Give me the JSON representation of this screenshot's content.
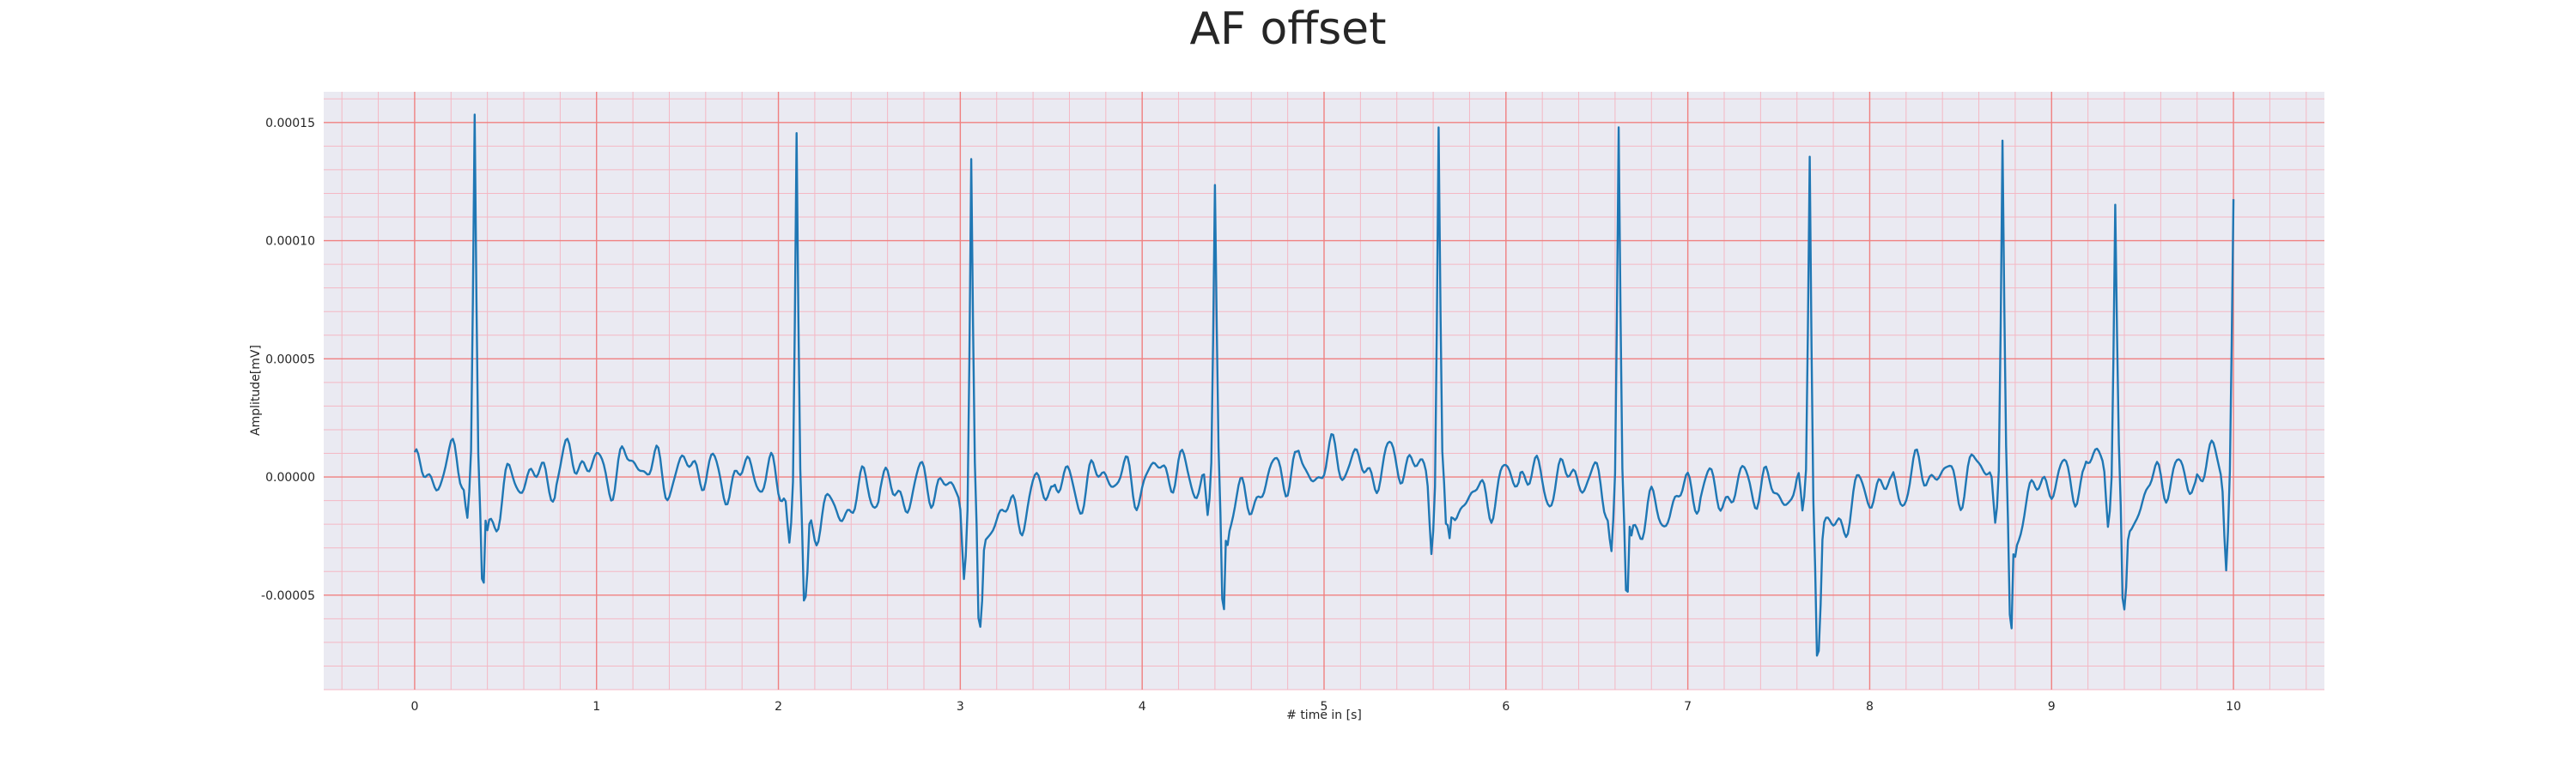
{
  "chart_data": {
    "type": "line",
    "title": "AF offset",
    "xlabel": "# time in [s]",
    "ylabel": "Amplitude[mV]",
    "xlim": [
      -0.5,
      10.5
    ],
    "ylim": [
      -9e-05,
      0.000163
    ],
    "xticks": [
      0,
      1,
      2,
      3,
      4,
      5,
      6,
      7,
      8,
      9,
      10
    ],
    "xtick_labels": [
      "0",
      "1",
      "2",
      "3",
      "4",
      "5",
      "6",
      "7",
      "8",
      "9",
      "10"
    ],
    "yticks": [
      -5e-05,
      0,
      5e-05,
      0.0001,
      0.00015
    ],
    "ytick_labels": [
      "-0.00005",
      "0.00000",
      "0.00005",
      "0.00010",
      "0.00015"
    ],
    "grid": true,
    "minor_grid": true,
    "colors": {
      "background": "#eaeaf2",
      "major_grid": "#f08080",
      "minor_grid": "#f4b8c4",
      "line": "#1f77b4"
    },
    "sampling": {
      "start_s": 0,
      "end_s": 10,
      "rate_hz": 100
    },
    "beats": [
      {
        "t": 0.33,
        "peak": 0.000146,
        "dip_before": -2.2e-05,
        "dip_after": -5.4e-05
      },
      {
        "t": 2.1,
        "peak": 0.000147,
        "dip_before": -2.1e-05,
        "dip_after": -6.3e-05
      },
      {
        "t": 3.06,
        "peak": 0.000142,
        "dip_before": -2.9e-05,
        "dip_after": -7.4e-05
      },
      {
        "t": 4.4,
        "peak": 0.000114,
        "dip_before": -2e-05,
        "dip_after": -6.3e-05
      },
      {
        "t": 5.63,
        "peak": 0.000152,
        "dip_before": -2.8e-05,
        "dip_after": -4e-05
      },
      {
        "t": 6.62,
        "peak": 0.000149,
        "dip_before": -2.5e-05,
        "dip_after": -5.6e-05
      },
      {
        "t": 7.67,
        "peak": 0.000146,
        "dip_before": -2.3e-05,
        "dip_after": -7.9e-05
      },
      {
        "t": 8.73,
        "peak": 0.000136,
        "dip_before": -2e-05,
        "dip_after": -7.2e-05
      },
      {
        "t": 9.35,
        "peak": 0.000111,
        "dip_before": -2.2e-05,
        "dip_after": -7.3e-05
      },
      {
        "t": 10.0,
        "peak": 0.000106,
        "dip_before": -3.6e-05,
        "dip_after": null
      }
    ],
    "baseline_noise_amplitude": 1.2e-05
  }
}
